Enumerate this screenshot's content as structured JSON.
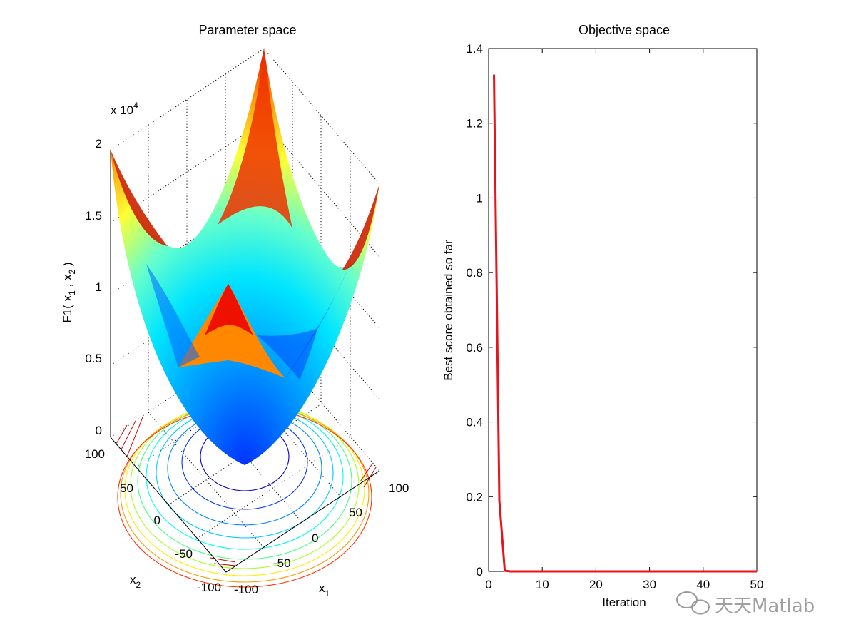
{
  "chart_data": [
    {
      "type": "surface",
      "title": "Parameter space",
      "zlabel": "F1( x",
      "zlabel_sub1": "1",
      "zlabel_mid": " , x",
      "zlabel_sub2": "2",
      "zlabel_end": " )",
      "xlabel": "x",
      "xlabel_sub": "1",
      "ylabel": "x",
      "ylabel_sub": "2",
      "z_exponent_label": "x 10",
      "z_exponent": "4",
      "z_ticks": [
        "0",
        "0.5",
        "1",
        "1.5",
        "2"
      ],
      "x_ticks": [
        "-100",
        "-50",
        "0",
        "50",
        "100"
      ],
      "y_ticks": [
        "100",
        "50",
        "0",
        "-50",
        "-100"
      ],
      "xlim": [
        -100,
        100
      ],
      "ylim": [
        -100,
        100
      ],
      "zlim": [
        0,
        20000
      ],
      "colormap": "jet",
      "has_contours": true
    },
    {
      "type": "line",
      "title": "Objective space",
      "xlabel": "Iteration",
      "ylabel": "Best score obtained so far",
      "xlim": [
        0,
        50
      ],
      "ylim": [
        0,
        1.4
      ],
      "x_ticks": [
        "0",
        "10",
        "20",
        "30",
        "40",
        "50"
      ],
      "y_ticks": [
        "0",
        "0.2",
        "0.4",
        "0.6",
        "0.8",
        "1",
        "1.2",
        "1.4"
      ],
      "color": "#e8141a",
      "series": [
        {
          "x": [
            1,
            2,
            3,
            4,
            5,
            10,
            15,
            20,
            25,
            30,
            35,
            40,
            45,
            50
          ],
          "values": [
            1.33,
            0.19,
            0.002,
            0.0,
            0.0,
            0.0,
            0.0,
            0.0,
            0.0,
            0.0,
            0.0,
            0.0,
            0.0,
            0.0
          ]
        }
      ]
    }
  ],
  "watermark": {
    "text": "天天Matlab"
  }
}
